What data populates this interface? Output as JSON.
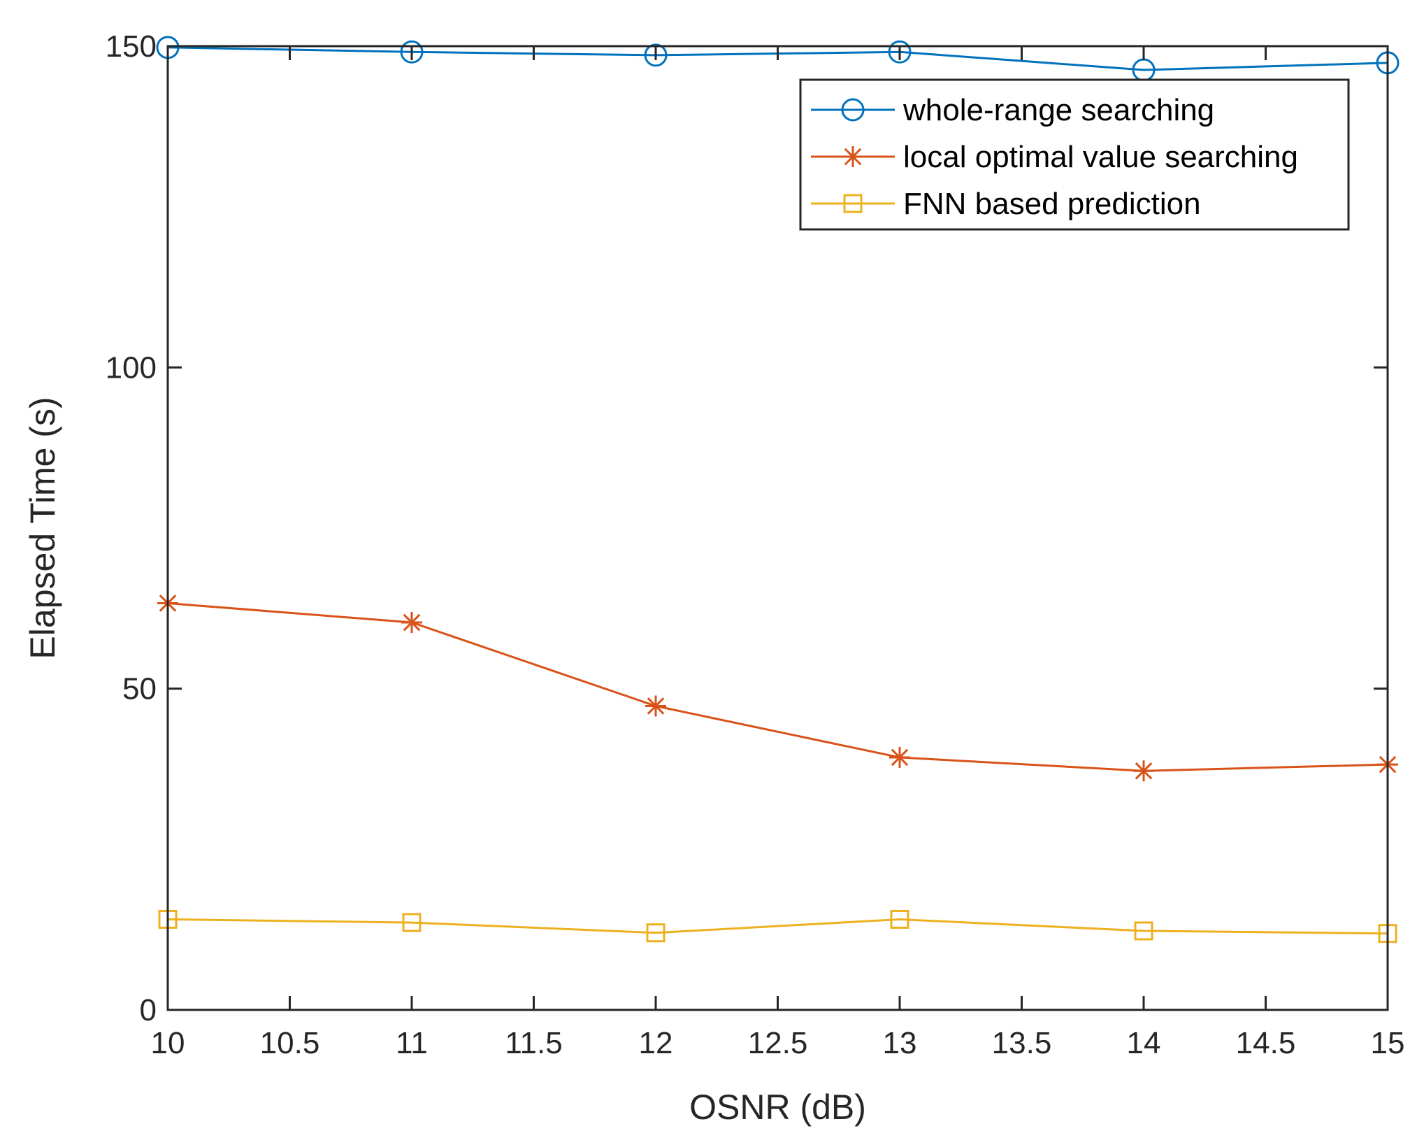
{
  "chart_data": {
    "type": "line",
    "title": "",
    "xlabel": "OSNR (dB)",
    "ylabel": "Elapsed Time (s)",
    "xlim": [
      10,
      15
    ],
    "ylim": [
      0,
      150
    ],
    "xticks": [
      10,
      10.5,
      11,
      11.5,
      12,
      12.5,
      13,
      13.5,
      14,
      14.5,
      15
    ],
    "xtick_labels": [
      "10",
      "10.5",
      "11",
      "11.5",
      "12",
      "12.5",
      "13",
      "13.5",
      "14",
      "14.5",
      "15"
    ],
    "yticks": [
      0,
      50,
      100,
      150
    ],
    "ytick_labels": [
      "0",
      "50",
      "100",
      "150"
    ],
    "grid": false,
    "legend_position": "top-right",
    "x": [
      10,
      11,
      12,
      13,
      14,
      15
    ],
    "series": [
      {
        "name": "whole-range searching",
        "marker": "circle",
        "color": "#0072BD",
        "values": [
          149.8,
          149.1,
          148.6,
          149.1,
          146.3,
          147.4
        ]
      },
      {
        "name": "local optimal value searching",
        "marker": "asterisk",
        "color": "#D95319",
        "values": [
          63.3,
          60.3,
          47.3,
          39.3,
          37.2,
          38.2
        ]
      },
      {
        "name": "FNN based prediction",
        "marker": "square",
        "color": "#EDB120",
        "values": [
          14.1,
          13.6,
          12.0,
          14.1,
          12.3,
          11.9
        ]
      }
    ]
  }
}
